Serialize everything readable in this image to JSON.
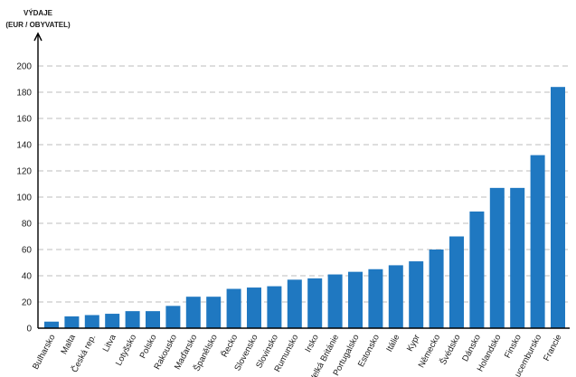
{
  "chart_data": {
    "type": "bar",
    "ylabel_line1": "VÝDAJE",
    "ylabel_line2": "(EUR / OBYVATEL)",
    "ylim": [
      0,
      200
    ],
    "yticks": [
      0,
      20,
      40,
      60,
      80,
      100,
      120,
      140,
      160,
      180,
      200
    ],
    "grid": true,
    "bar_color": "#1f78c1",
    "categories": [
      "Bulharsko",
      "Malta",
      "Česká rep.",
      "Litva",
      "Lotyšsko",
      "Polsko",
      "Rakousko",
      "Maďarsko",
      "Španělsko",
      "Řecko",
      "Slovensko",
      "Slovinsko",
      "Rumunsko",
      "Irsko",
      "Velká Británie",
      "Portugalsko",
      "Estonsko",
      "Itálie",
      "Kypr",
      "Německo",
      "Švédsko",
      "Dánsko",
      "Holandsko",
      "Finsko",
      "Lucembursko",
      "Francie"
    ],
    "values": [
      5,
      9,
      10,
      11,
      13,
      13,
      17,
      24,
      24,
      30,
      31,
      32,
      37,
      38,
      41,
      43,
      45,
      48,
      51,
      60,
      70,
      89,
      107,
      107,
      132,
      184
    ]
  }
}
